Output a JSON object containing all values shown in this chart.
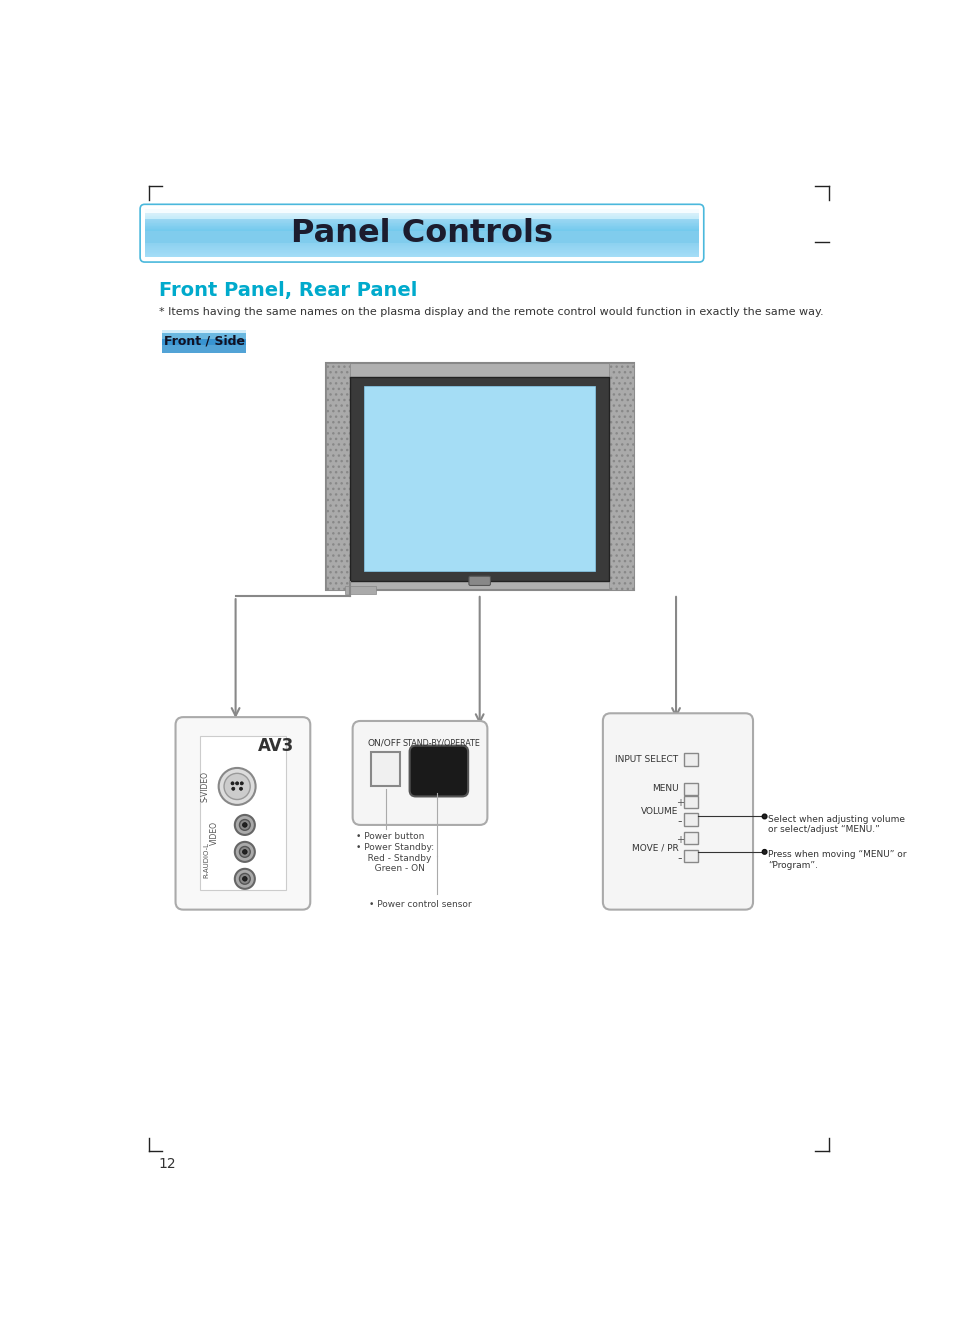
{
  "title": "Panel Controls",
  "subtitle": "Front Panel, Rear Panel",
  "note": "* Items having the same names on the plasma display and the remote control would function in exactly the same way.",
  "button_label": "Front / Side",
  "page_number": "12",
  "bg_color": "#ffffff",
  "title_color": "#1a1a2e",
  "subtitle_color": "#00aacc",
  "note_color": "#333333",
  "labels": {
    "on_off": "ON/OFF",
    "standby": "STAND-BY/OPERATE",
    "power_btn": "• Power button",
    "power_standby": "• Power Standby:\n   Red - Standby\n   Green - ON",
    "power_sensor": "• Power control sensor",
    "input_select": "INPUT SELECT",
    "menu": "MENU",
    "volume": "VOLUME",
    "move_pr": "MOVE / PR",
    "select_note": "Select when adjusting volume\nor select/adjust “MENU.”",
    "press_note": "Press when moving “MENU” or\n“Program”.",
    "av3": "AV3",
    "r_audio_l": "R-AUDIO-L",
    "video": "VIDEO",
    "s_video": "S-VIDEO"
  }
}
